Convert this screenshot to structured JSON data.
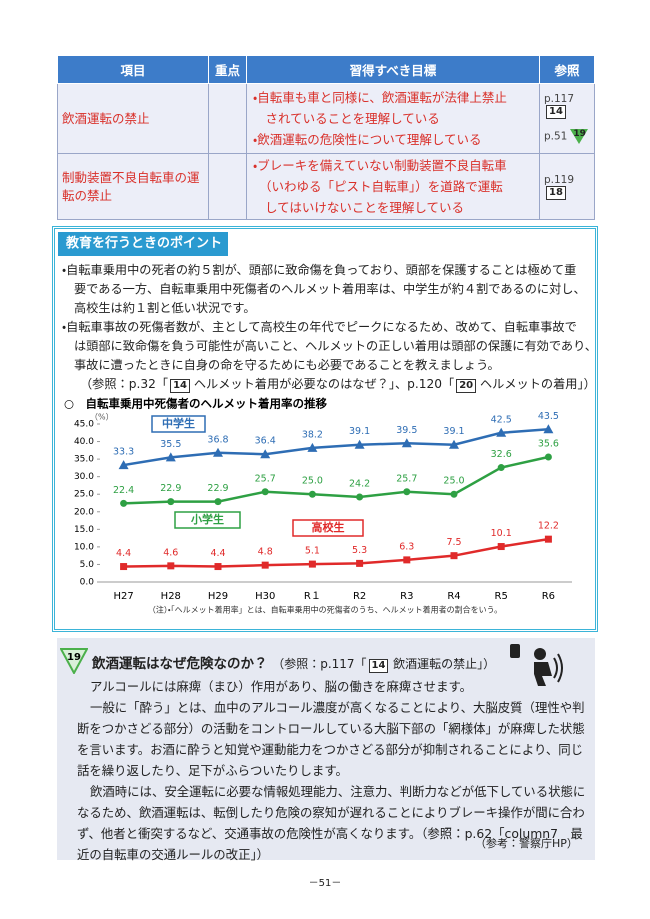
{
  "table": {
    "headers": [
      "項目",
      "重点",
      "習得すべき目標",
      "参照"
    ],
    "rows": [
      {
        "item": "飲酒運転の禁止",
        "goals": [
          "・自転車も車と同様に、飲酒運転が法律上禁止",
          "　されていることを理解している",
          "・飲酒運転の危険性について理解している"
        ],
        "refs": [
          {
            "page": "p.117",
            "badge": "14"
          },
          {
            "page": "p.51",
            "badge": "19"
          }
        ]
      },
      {
        "item": "制動装置不良自転車の運転の禁止",
        "goals": [
          "・ブレーキを備えていない制動装置不良自転車",
          "（いわゆる「ピスト自転車」）を道路で運転",
          "してはいけないことを理解している"
        ],
        "refs": [
          {
            "page": "p.119",
            "badge": "18"
          }
        ]
      }
    ]
  },
  "points": {
    "title": "教育を行うときのポイント",
    "lines": [
      "・自転車乗用中の死者の約５割が、頭部に致命傷を負っており、頭部を保護することは極めて重",
      "要である一方、自転車乗用中死傷者のヘルメット着用率は、中学生が約４割であるのに対し、",
      "高校生は約１割と低い状況です。",
      "・自転車事故の死傷者数が、主として高校生の年代でピークになるため、改めて、自転車事故で",
      "は頭部に致命傷を負う可能性が高いこと、ヘルメットの正しい着用は頭部の保護に有効であり、",
      "事故に遭ったときに自身の命を守るためにも必要であることを教えましょう。"
    ],
    "reference": [
      "（参照：p.32「",
      "14",
      "ヘルメット着用が必要なのはなぜ？」、p.120「",
      "20",
      "ヘルメットの着用」）"
    ]
  },
  "chart_data": {
    "type": "line",
    "title": "○　自転車乗用中死傷者のヘルメット着用率の推移",
    "y_label": "（%）",
    "categories": [
      "H27",
      "H28",
      "H29",
      "H30",
      "R１",
      "R2",
      "R3",
      "R4",
      "R5",
      "R6"
    ],
    "ylim": [
      0,
      45
    ],
    "yticks": [
      {
        "value": 0,
        "label": "0.0"
      },
      {
        "value": 5,
        "label": "5.0"
      },
      {
        "value": 10,
        "label": "10.0"
      },
      {
        "value": 15,
        "label": "15.0"
      },
      {
        "value": 20,
        "label": "20.0"
      },
      {
        "value": 25,
        "label": "25.0"
      },
      {
        "value": 30,
        "label": "30.0"
      },
      {
        "value": 35,
        "label": "35.0"
      },
      {
        "value": 40,
        "label": "40.0"
      },
      {
        "value": 45,
        "label": "45.0"
      }
    ],
    "grid": false,
    "series": [
      {
        "name": "中学生",
        "color": "#2e6db4",
        "values": [
          33.3,
          35.5,
          36.8,
          36.4,
          38.2,
          39.1,
          39.5,
          39.1,
          42.5,
          43.5
        ],
        "value_labels": [
          "33.3",
          "35.5",
          "36.8",
          "36.4",
          "38.2",
          "39.1",
          "39.5",
          "39.1",
          "42.5",
          "43.5"
        ]
      },
      {
        "name": "小学生",
        "color": "#2ea043",
        "values": [
          22.4,
          22.9,
          22.9,
          25.7,
          25,
          24.2,
          25.7,
          25,
          32.6,
          35.6
        ],
        "value_labels": [
          "22.4",
          "22.9",
          "22.9",
          "25.7",
          "25.0",
          "24.2",
          "25.7",
          "25.0",
          "32.6",
          "35.6"
        ]
      },
      {
        "name": "高校生",
        "color": "#e02a2a",
        "values": [
          4.4,
          4.6,
          4.4,
          4.8,
          5.1,
          5.3,
          6.3,
          7.5,
          10.1,
          12.2
        ],
        "value_labels": [
          "4.4",
          "4.6",
          "4.4",
          "4.8",
          "5.1",
          "5.3",
          "6.3",
          "7.5",
          "10.1",
          "12.2"
        ]
      }
    ],
    "note": "（注）・「ヘルメット着用率」とは、自転車乗用中の死傷者のうち、ヘルメット着用者の割合をいう。"
  },
  "column": {
    "badge": "19",
    "title": "飲酒運転はなぜ危険なのか？",
    "reference": [
      "（参照：p.117「",
      "14",
      "飲酒運転の禁止」）"
    ],
    "lines": [
      "アルコールには麻痺（まひ）作用があり、脳の働きを麻痺させます。",
      "一般に「酔う」とは、血中のアルコール濃度が高くなることにより、大脳皮質（理性や判",
      "断をつかさどる部分）の活動をコントロールしている大脳下部の「網様体」が麻痺した状態",
      "を言います。お酒に酔うと知覚や運動能力をつかさどる部分が抑制されることにより、同じ",
      "話を繰り返したり、足下がふらついたりします。",
      "飲酒時には、安全運転に必要な情報処理能力、注意力、判断力などが低下している状態に",
      "なるため、飲酒運転は、転倒したり危険の察知が遅れることによりブレーキ操作が間に合わ",
      "ず、他者と衝突するなど、交通事故の危険性が高くなります。（参照：p.62「column7　最",
      "近の自転車の交通ルールの改正」）"
    ],
    "source": "（参考：警察庁HP）"
  },
  "page_number": "－51－"
}
